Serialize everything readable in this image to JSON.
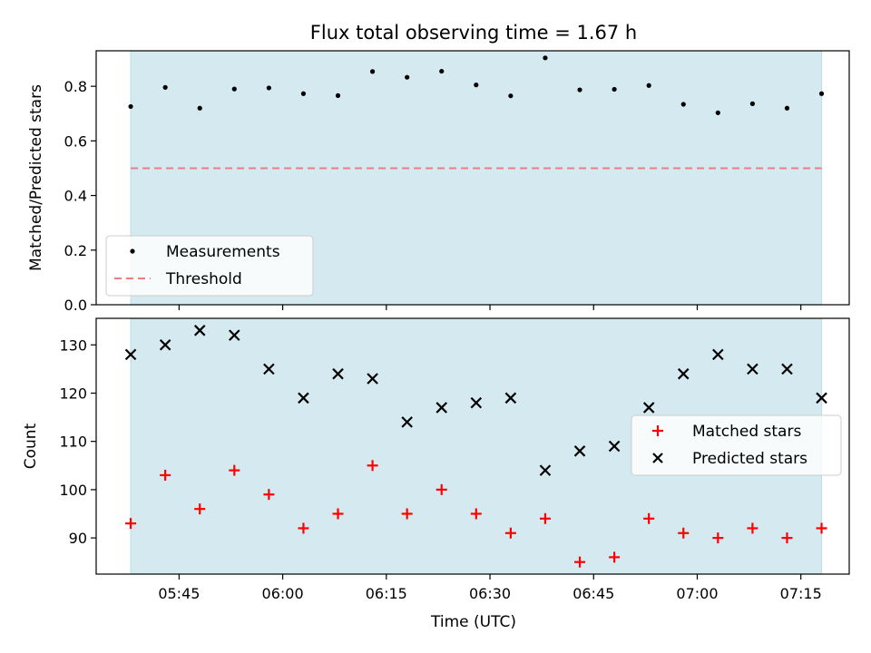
{
  "colors": {
    "background": "#ffffff",
    "shade": "#d4eaf0",
    "shade_edge": "#b9dde6",
    "measurement": "#000000",
    "threshold": "#f07d7d",
    "matched": "#ff0000",
    "predicted": "#000000"
  },
  "chart_data": [
    {
      "type": "scatter",
      "title": "Flux total observing time = 1.67 h",
      "xlabel": "",
      "ylabel": "Matched/Predicted stars",
      "ylim": [
        0.0,
        0.93
      ],
      "xlim": [
        "05:33",
        "07:22"
      ],
      "yticks": [
        "0.0",
        "0.2",
        "0.4",
        "0.6",
        "0.8"
      ],
      "shaded_interval": [
        "05:38",
        "07:18"
      ],
      "threshold": 0.5,
      "legend_location": "lower-left",
      "legend": [
        "Measurements",
        "Threshold"
      ],
      "x": [
        "05:38",
        "05:43",
        "05:48",
        "05:53",
        "05:58",
        "06:03",
        "06:08",
        "06:13",
        "06:18",
        "06:23",
        "06:28",
        "06:33",
        "06:38",
        "06:43",
        "06:48",
        "06:53",
        "06:58",
        "07:03",
        "07:08",
        "07:13",
        "07:18"
      ],
      "series": [
        {
          "name": "Measurements",
          "values": [
            0.726,
            0.796,
            0.72,
            0.79,
            0.794,
            0.773,
            0.766,
            0.854,
            0.833,
            0.855,
            0.805,
            0.765,
            0.904,
            0.787,
            0.789,
            0.803,
            0.734,
            0.703,
            0.736,
            0.72,
            0.773
          ]
        }
      ]
    },
    {
      "type": "scatter",
      "title": "",
      "xlabel": "Time (UTC)",
      "ylabel": "Count",
      "ylim": [
        82.5,
        135.5
      ],
      "xlim": [
        "05:33",
        "07:22"
      ],
      "xticks": [
        "05:45",
        "06:00",
        "06:15",
        "06:30",
        "06:45",
        "07:00",
        "07:15"
      ],
      "yticks": [
        "90",
        "100",
        "110",
        "120",
        "130"
      ],
      "shaded_interval": [
        "05:38",
        "07:18"
      ],
      "legend_location": "center-right",
      "legend": [
        "Matched stars",
        "Predicted stars"
      ],
      "x": [
        "05:38",
        "05:43",
        "05:48",
        "05:53",
        "05:58",
        "06:03",
        "06:08",
        "06:13",
        "06:18",
        "06:23",
        "06:28",
        "06:33",
        "06:38",
        "06:43",
        "06:48",
        "06:53",
        "06:58",
        "07:03",
        "07:08",
        "07:13",
        "07:18"
      ],
      "series": [
        {
          "name": "Matched stars",
          "values": [
            93,
            103,
            96,
            104,
            99,
            92,
            95,
            105,
            95,
            100,
            95,
            91,
            94,
            85,
            86,
            94,
            91,
            90,
            92,
            90,
            92
          ]
        },
        {
          "name": "Predicted stars",
          "values": [
            128,
            130,
            133,
            132,
            125,
            119,
            124,
            123,
            114,
            117,
            118,
            119,
            104,
            108,
            109,
            117,
            124,
            128,
            125,
            125,
            119
          ]
        }
      ]
    }
  ]
}
